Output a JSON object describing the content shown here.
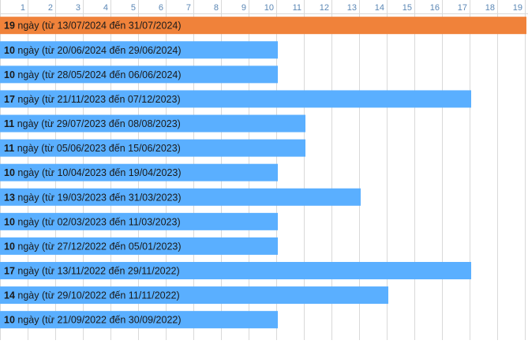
{
  "chart_data": {
    "type": "bar",
    "orientation": "horizontal",
    "x_ticks": [
      "1",
      "2",
      "3",
      "4",
      "5",
      "6",
      "7",
      "8",
      "9",
      "10",
      "11",
      "12",
      "13",
      "14",
      "15",
      "16",
      "17",
      "18",
      "19"
    ],
    "xlim": [
      0,
      19
    ],
    "grid": true,
    "colors": {
      "highlight": "#f0823a",
      "normal": "#5aafff",
      "grid": "#d9d9d9",
      "tick": "#5b87b5"
    },
    "bars": [
      {
        "value": 19,
        "unit": "ngày",
        "label": "(từ 13/07/2024 đến 31/07/2024)",
        "highlight": true
      },
      {
        "value": 10,
        "unit": "ngày",
        "label": "(từ 20/06/2024 đến 29/06/2024)",
        "highlight": false
      },
      {
        "value": 10,
        "unit": "ngày",
        "label": "(từ 28/05/2024 đến 06/06/2024)",
        "highlight": false
      },
      {
        "value": 17,
        "unit": "ngày",
        "label": "(từ 21/11/2023 đến 07/12/2023)",
        "highlight": false
      },
      {
        "value": 11,
        "unit": "ngày",
        "label": "(từ 29/07/2023 đến 08/08/2023)",
        "highlight": false
      },
      {
        "value": 11,
        "unit": "ngày",
        "label": "(từ 05/06/2023 đến 15/06/2023)",
        "highlight": false
      },
      {
        "value": 10,
        "unit": "ngày",
        "label": "(từ 10/04/2023 đến 19/04/2023)",
        "highlight": false
      },
      {
        "value": 13,
        "unit": "ngày",
        "label": "(từ 19/03/2023 đến 31/03/2023)",
        "highlight": false
      },
      {
        "value": 10,
        "unit": "ngày",
        "label": "(từ 02/03/2023 đến 11/03/2023)",
        "highlight": false
      },
      {
        "value": 10,
        "unit": "ngày",
        "label": "(từ 27/12/2022 đến 05/01/2023)",
        "highlight": false
      },
      {
        "value": 17,
        "unit": "ngày",
        "label": "(từ 13/11/2022 đến 29/11/2022)",
        "highlight": false
      },
      {
        "value": 14,
        "unit": "ngày",
        "label": "(từ 29/10/2022 đến 11/11/2022)",
        "highlight": false
      },
      {
        "value": 10,
        "unit": "ngày",
        "label": "(từ 21/09/2022 đến 30/09/2022)",
        "highlight": false
      }
    ]
  }
}
